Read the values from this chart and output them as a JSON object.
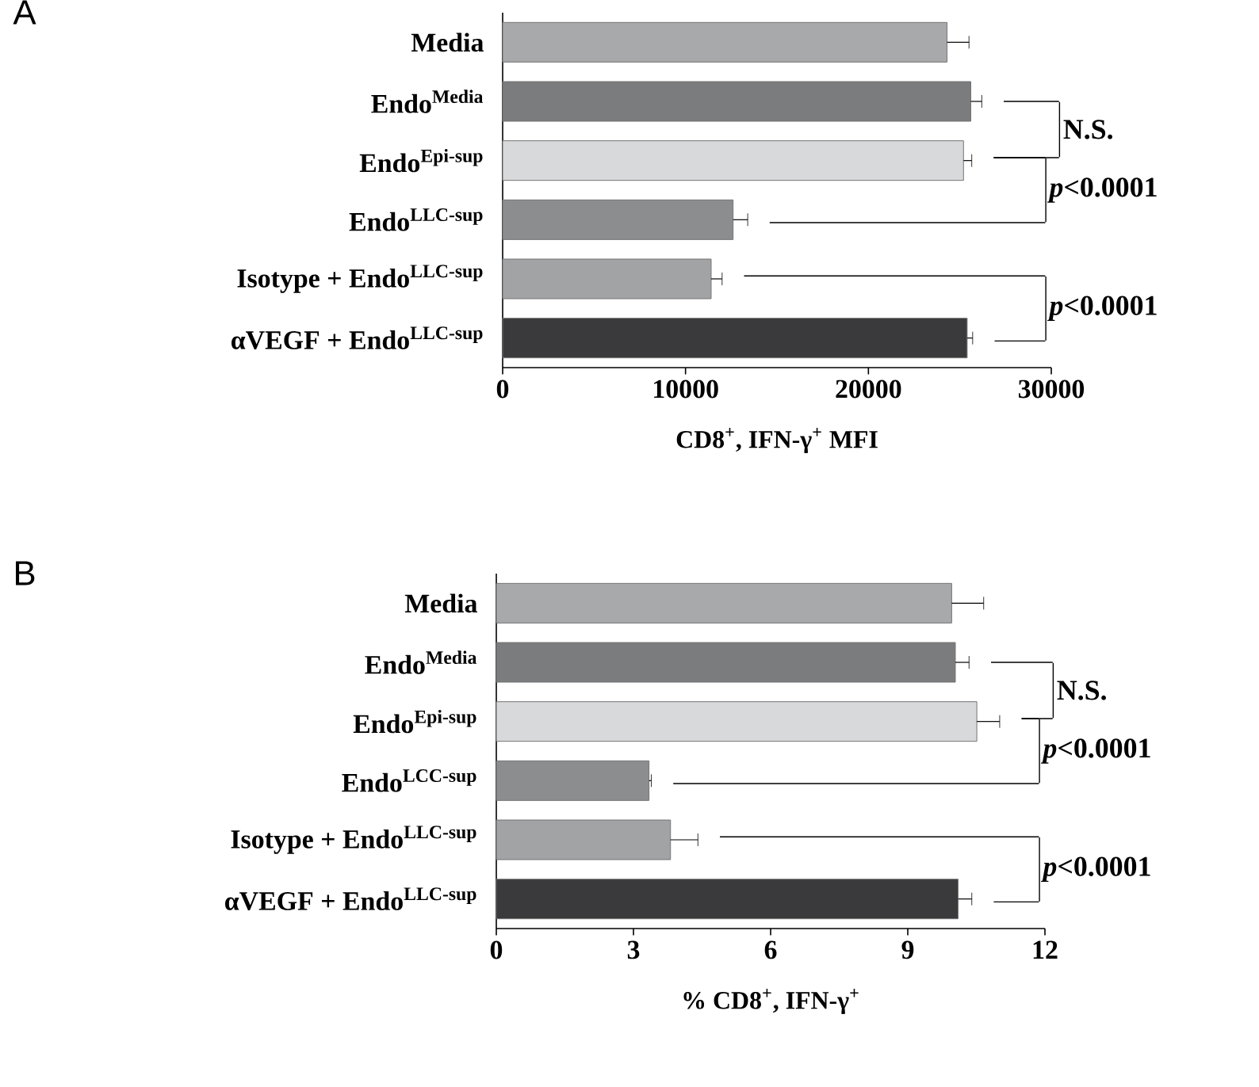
{
  "chart_data": [
    {
      "type": "bar",
      "orientation": "horizontal",
      "title": "A",
      "categories": [
        "Media",
        "Endo$^{Media}$",
        "Endo$^{Epi-sup}$",
        "Endo$^{LLC-sup}$",
        "Isotype + Endo$^{LLC-sup}$",
        "αVEGF + Endo$^{LLC-sup}$"
      ],
      "values": [
        24300,
        25600,
        25200,
        12600,
        11400,
        25400
      ],
      "errors": [
        1200,
        600,
        450,
        800,
        600,
        300
      ],
      "colors": [
        "#a8a9ab",
        "#7b7c7e",
        "#d8d9da",
        "#8c8d8f",
        "#a2a3a5",
        "#3a3a3c"
      ],
      "xlabel": "CD8$^{+}$, IFN-γ$^{+}$ MFI",
      "xlim": [
        0,
        30000
      ],
      "xticks": [
        0,
        10000,
        20000,
        30000
      ],
      "annotations": [
        "N.S.",
        "*p*<0.0001",
        "*p*<0.0001"
      ]
    },
    {
      "type": "bar",
      "orientation": "horizontal",
      "title": "B",
      "categories": [
        "Media",
        "Endo$^{Media}$",
        "Endo$^{Epi-sup}$",
        "Endo$^{LCC-sup}$",
        "Isotype + Endo$^{LLC-sup}$",
        "αVEGF + Endo$^{LLC-sup}$"
      ],
      "values": [
        9.96,
        10.04,
        10.51,
        3.34,
        3.81,
        10.1
      ],
      "errors": [
        0.7,
        0.3,
        0.5,
        0.05,
        0.6,
        0.3
      ],
      "colors": [
        "#a8a9ab",
        "#7b7c7e",
        "#d8d9da",
        "#8c8d8f",
        "#a2a3a5",
        "#3a3a3c"
      ],
      "xlabel": "% CD8$^{+}$, IFN-γ$^{+}$",
      "xlim": [
        0,
        12
      ],
      "xticks": [
        0,
        3,
        6,
        9,
        12
      ],
      "annotations": [
        "N.S.",
        "*p*<0.0001",
        "*p*<0.0001"
      ]
    }
  ]
}
